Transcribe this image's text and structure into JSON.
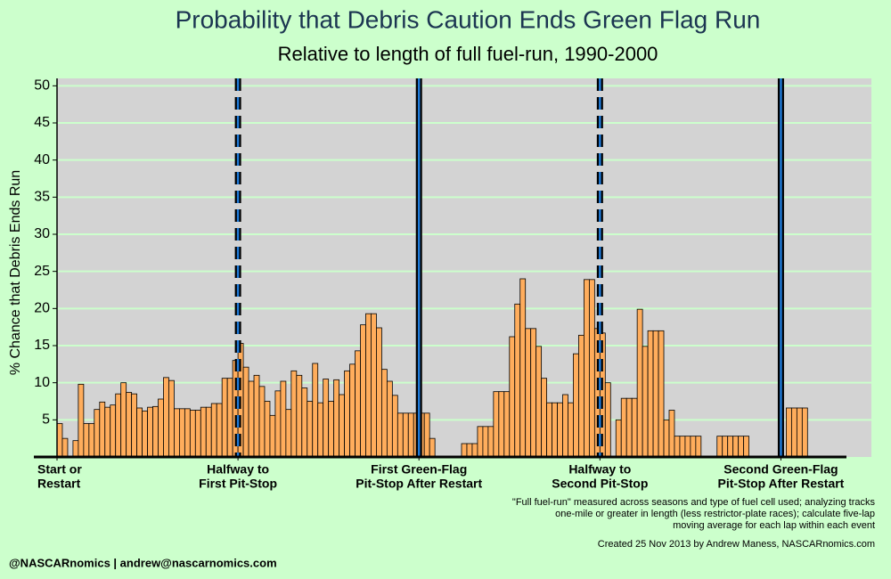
{
  "chart_data": {
    "type": "histogram",
    "title": "Probability that Debris Caution Ends Green Flag Run",
    "subtitle": "Relative to length of full fuel-run, 1990-2000",
    "y_label": "% Chance that Debris Ends Run",
    "note": [
      "\"Full fuel-run\" measured across seasons and type of fuel cell used; analyzing tracks",
      "one-mile or greater in length (less restrictor-plate races); calculate five-lap",
      "moving average for each lap within each event"
    ],
    "credit": "Created 25 Nov 2013 by Andrew Maness, NASCARnomics.com",
    "footer": "@NASCARnomics | andrew@nascarnomics.com",
    "color": "#ffad5c",
    "grid": true,
    "grid_color": "#ccffcc",
    "plot_background": "#d3d3d3",
    "reference_line_color": "#000000",
    "reference_line_inner_color": "#1f7ad8",
    "reference_lines": [
      {
        "x": 34,
        "dashed": true
      },
      {
        "x": 68,
        "dashed": false
      },
      {
        "x": 102,
        "dashed": true
      },
      {
        "x": 136,
        "dashed": false
      }
    ],
    "xlim": [
      0,
      153
    ],
    "xticks": [
      {
        "value": 0,
        "label": [
          "Start or",
          "Restart"
        ]
      },
      {
        "value": 34,
        "label": [
          "Halfway to",
          "First Pit-Stop"
        ]
      },
      {
        "value": 68,
        "label": [
          "First Green-Flag",
          "Pit-Stop After Restart"
        ]
      },
      {
        "value": 102,
        "label": [
          "Halfway to",
          "Second Pit-Stop"
        ]
      },
      {
        "value": 136,
        "label": [
          "Second Green-Flag",
          "Pit-Stop After Restart"
        ]
      }
    ],
    "ylim": [
      0,
      51
    ],
    "yticks": [
      5,
      10,
      15,
      20,
      25,
      30,
      35,
      40,
      45,
      50
    ],
    "bins": [
      0,
      1,
      2,
      3,
      4,
      5,
      6,
      7,
      8,
      9,
      10,
      11,
      12,
      13,
      14,
      15,
      16,
      17,
      18,
      19,
      20,
      21,
      22,
      23,
      24,
      25,
      26,
      27,
      28,
      29,
      30,
      31,
      32,
      33,
      34,
      35,
      36,
      37,
      38,
      39,
      40,
      41,
      42,
      43,
      44,
      45,
      46,
      47,
      48,
      49,
      50,
      51,
      52,
      53,
      54,
      55,
      56,
      57,
      58,
      59,
      60,
      61,
      62,
      63,
      64,
      65,
      66,
      67,
      68,
      69,
      70,
      71,
      72,
      73,
      74,
      75,
      76,
      77,
      78,
      79,
      80,
      81,
      82,
      83,
      84,
      85,
      86,
      87,
      88,
      89,
      90,
      91,
      92,
      93,
      94,
      95,
      96,
      97,
      98,
      99,
      100,
      101,
      102,
      103,
      104,
      105,
      106,
      107,
      108,
      109,
      110,
      111,
      112,
      113,
      114,
      115,
      116,
      117,
      118,
      119,
      120,
      121,
      122,
      123,
      124,
      125,
      126,
      127,
      128,
      129,
      130,
      131,
      132,
      133,
      134,
      135,
      136,
      137,
      138,
      139,
      140,
      141
    ],
    "values": [
      4.5,
      2.5,
      0,
      2.2,
      9.8,
      4.5,
      4.5,
      6.4,
      7.4,
      6.7,
      7.0,
      8.5,
      10.0,
      8.7,
      8.5,
      6.6,
      6.2,
      6.7,
      6.8,
      7.8,
      10.7,
      10.3,
      6.5,
      6.5,
      6.5,
      6.3,
      6.3,
      6.7,
      6.7,
      7.2,
      7.2,
      10.6,
      10.6,
      13.0,
      15.3,
      12.1,
      10.2,
      11.0,
      9.5,
      7.5,
      5.6,
      8.9,
      10.2,
      6.4,
      11.6,
      11.0,
      9.3,
      7.5,
      12.6,
      7.3,
      10.5,
      7.5,
      10.4,
      8.4,
      11.6,
      12.5,
      14.3,
      17.8,
      19.3,
      19.3,
      17.4,
      11.8,
      10.2,
      8.3,
      5.9,
      5.9,
      5.9,
      5.9,
      5.9,
      5.9,
      2.5,
      0,
      0,
      0,
      0,
      0,
      1.8,
      1.8,
      1.8,
      4.1,
      4.1,
      4.1,
      8.8,
      8.8,
      8.8,
      16.2,
      20.6,
      24.0,
      17.3,
      17.3,
      14.9,
      10.6,
      7.3,
      7.3,
      7.3,
      8.4,
      7.3,
      13.9,
      16.4,
      23.9,
      23.9,
      17.3,
      16.7,
      10.0,
      0,
      5.0,
      7.9,
      7.9,
      7.9,
      19.9,
      14.9,
      17.0,
      17.0,
      17.0,
      5.0,
      6.3,
      2.8,
      2.8,
      2.8,
      2.8,
      2.8,
      0,
      0,
      0,
      2.8,
      2.8,
      2.8,
      2.8,
      2.8,
      2.8,
      0,
      0,
      0,
      0,
      0,
      0,
      0,
      6.6,
      6.6,
      6.6,
      6.6
    ]
  }
}
